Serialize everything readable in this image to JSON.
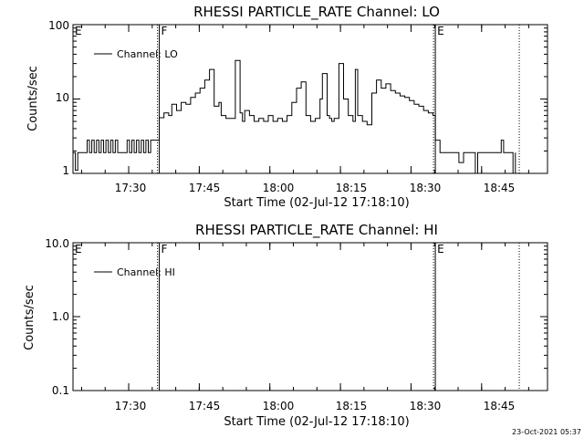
{
  "footer": {
    "timestamp": "23-Oct-2021 05:37"
  },
  "chart_data": [
    {
      "type": "line",
      "title": "RHESSI PARTICLE_RATE Channel: LO",
      "xlabel": "Start Time (02-Jul-12 17:18:10)",
      "ylabel": "Counts/sec",
      "yscale": "log",
      "ylim": [
        1,
        100
      ],
      "xlim_minutes": [
        "17:18:10",
        "18:59:00"
      ],
      "x_ticks": [
        "17:30",
        "17:45",
        "18:00",
        "18:15",
        "18:30",
        "18:45"
      ],
      "y_ticks": [
        "1",
        "10",
        "100"
      ],
      "legend": {
        "entries": [
          "Channel: LO"
        ],
        "position": "top-left"
      },
      "markers": [
        {
          "label": "E",
          "time": "17:18:10",
          "style": "solid"
        },
        {
          "label": "F",
          "time": "17:36:30",
          "style": "solid"
        },
        {
          "label": "E",
          "time": "18:35:10",
          "style": "solid"
        },
        {
          "label": "",
          "time": "18:53:00",
          "style": "dotted"
        }
      ],
      "series": [
        {
          "name": "Channel: LO",
          "x": [
            "17:18:10",
            "17:18:40",
            "17:19:10",
            "17:19:40",
            "17:20:10",
            "17:21:10",
            "17:21:40",
            "17:22:10",
            "17:22:40",
            "17:23:10",
            "17:23:40",
            "17:24:10",
            "17:24:40",
            "17:25:10",
            "17:25:40",
            "17:26:10",
            "17:26:40",
            "17:27:10",
            "17:27:40",
            "17:28:10",
            "17:28:40",
            "17:29:10",
            "17:29:40",
            "17:30:10",
            "17:30:40",
            "17:31:10",
            "17:31:40",
            "17:32:10",
            "17:32:40",
            "17:33:10",
            "17:33:40",
            "17:34:10",
            "17:34:40",
            "17:35:10",
            "17:35:40",
            "17:36:10",
            "17:36:30",
            "17:37:30",
            "17:38:30",
            "17:39:10",
            "17:40:10",
            "17:41:10",
            "17:42:10",
            "17:43:10",
            "17:44:10",
            "17:45:10",
            "17:46:10",
            "17:47:10",
            "17:48:10",
            "17:49:10",
            "17:49:40",
            "17:50:40",
            "17:51:40",
            "17:52:40",
            "17:53:40",
            "17:54:10",
            "17:54:40",
            "17:55:40",
            "17:56:40",
            "17:57:40",
            "17:58:40",
            "17:59:40",
            "18:00:40",
            "18:01:40",
            "18:02:40",
            "18:03:40",
            "18:04:40",
            "18:05:40",
            "18:06:40",
            "18:07:40",
            "18:08:40",
            "18:09:40",
            "18:10:40",
            "18:11:10",
            "18:12:10",
            "18:12:40",
            "18:13:10",
            "18:13:40",
            "18:14:40",
            "18:15:40",
            "18:16:40",
            "18:17:40",
            "18:18:10",
            "18:18:40",
            "18:19:40",
            "18:20:40",
            "18:21:40",
            "18:22:40",
            "18:23:40",
            "18:24:40",
            "18:25:40",
            "18:26:40",
            "18:27:40",
            "18:28:40",
            "18:29:40",
            "18:30:40",
            "18:31:40",
            "18:32:40",
            "18:33:40",
            "18:34:40",
            "18:35:10",
            "18:36:10",
            "18:37:10",
            "18:38:10",
            "18:39:10",
            "18:40:10",
            "18:41:10",
            "18:42:10",
            "18:43:10",
            "18:43:40",
            "18:44:10",
            "18:45:10",
            "18:46:10",
            "18:47:10",
            "18:48:10",
            "18:49:10",
            "18:49:40",
            "18:50:10",
            "18:51:10",
            "18:51:40",
            "18:52:10"
          ],
          "y": [
            1.9,
            1.1,
            1.9,
            1.9,
            1.9,
            2.8,
            1.9,
            2.8,
            1.9,
            2.8,
            1.9,
            2.8,
            1.9,
            2.8,
            1.9,
            2.8,
            1.9,
            2.8,
            1.9,
            1.9,
            1.9,
            1.9,
            2.8,
            1.9,
            2.8,
            1.9,
            2.8,
            1.9,
            2.8,
            1.9,
            2.8,
            1.9,
            2.8,
            2.8,
            2.8,
            2.8,
            5.6,
            6.5,
            6.0,
            8.5,
            7.0,
            9.0,
            8.5,
            10.5,
            12.0,
            14.0,
            18.0,
            25.0,
            8.0,
            9.0,
            6.0,
            5.5,
            5.5,
            33.0,
            6.5,
            5.0,
            7.0,
            6.0,
            5.0,
            5.5,
            5.0,
            6.0,
            5.0,
            5.5,
            5.0,
            6.0,
            9.0,
            14.0,
            17.0,
            6.0,
            5.0,
            5.5,
            10.0,
            22.0,
            6.0,
            5.5,
            5.0,
            5.5,
            30.0,
            10.0,
            6.0,
            5.0,
            25.0,
            6.0,
            5.0,
            4.5,
            12.0,
            18.0,
            14.0,
            16.0,
            13.0,
            12.0,
            11.0,
            10.5,
            9.5,
            8.5,
            8.0,
            7.0,
            6.5,
            6.0,
            2.8,
            1.9,
            1.9,
            1.9,
            1.9,
            1.4,
            1.9,
            1.9,
            1.9,
            1.0,
            1.9,
            1.9,
            1.9,
            1.9,
            1.9,
            2.8,
            1.9,
            1.9,
            1.9,
            1.0,
            1.9
          ]
        }
      ]
    },
    {
      "type": "line",
      "title": "RHESSI PARTICLE_RATE Channel: HI",
      "xlabel": "Start Time (02-Jul-12 17:18:10)",
      "ylabel": "Counts/sec",
      "yscale": "log",
      "ylim": [
        0.1,
        10.0
      ],
      "x_ticks": [
        "17:30",
        "17:45",
        "18:00",
        "18:15",
        "18:30",
        "18:45"
      ],
      "y_ticks": [
        "0.1",
        "1.0",
        "10.0"
      ],
      "legend": {
        "entries": [
          "Channel: HI"
        ],
        "position": "top-left"
      },
      "markers": [
        {
          "label": "E",
          "time": "17:18:10",
          "style": "solid"
        },
        {
          "label": "F",
          "time": "17:36:30",
          "style": "solid"
        },
        {
          "label": "E",
          "time": "18:35:10",
          "style": "solid"
        },
        {
          "label": "",
          "time": "18:53:00",
          "style": "dotted"
        }
      ],
      "series": [
        {
          "name": "Channel: HI",
          "x": [],
          "y": []
        }
      ]
    }
  ]
}
